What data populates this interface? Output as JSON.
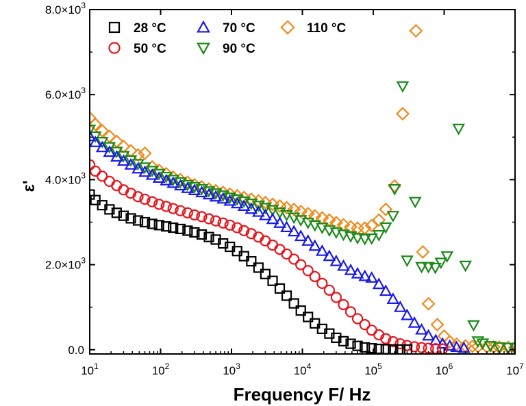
{
  "chart_data": {
    "type": "scatter",
    "xscale": "log",
    "xlabel": "Frequency F/ Hz",
    "ylabel": "ε'",
    "xlim": [
      10,
      10000000
    ],
    "ylim": [
      -100,
      8000
    ],
    "x_ticks": [
      {
        "value": 10,
        "base": "10",
        "exp": "1"
      },
      {
        "value": 100,
        "base": "10",
        "exp": "2"
      },
      {
        "value": 1000,
        "base": "10",
        "exp": "3"
      },
      {
        "value": 10000,
        "base": "10",
        "exp": "4"
      },
      {
        "value": 100000,
        "base": "10",
        "exp": "5"
      },
      {
        "value": 1000000,
        "base": "10",
        "exp": "6"
      },
      {
        "value": 10000000,
        "base": "10",
        "exp": "7"
      }
    ],
    "y_ticks": [
      {
        "value": 0,
        "text": "0.0"
      },
      {
        "value": 2000,
        "text": "2.0×10",
        "exp": "3"
      },
      {
        "value": 4000,
        "text": "4.0×10",
        "exp": "3"
      },
      {
        "value": 6000,
        "text": "6.0×10",
        "exp": "3"
      },
      {
        "value": 8000,
        "text": "8.0×10",
        "exp": "3"
      }
    ],
    "series": [
      {
        "name": "28 °C",
        "marker": "square",
        "color": "#000000",
        "points": [
          [
            10,
            3650
          ],
          [
            12,
            3520
          ],
          [
            15,
            3400
          ],
          [
            19,
            3300
          ],
          [
            24,
            3220
          ],
          [
            30,
            3150
          ],
          [
            38,
            3090
          ],
          [
            48,
            3040
          ],
          [
            60,
            3000
          ],
          [
            76,
            2960
          ],
          [
            95,
            2930
          ],
          [
            120,
            2900
          ],
          [
            150,
            2870
          ],
          [
            190,
            2840
          ],
          [
            240,
            2800
          ],
          [
            300,
            2760
          ],
          [
            380,
            2710
          ],
          [
            480,
            2650
          ],
          [
            600,
            2590
          ],
          [
            760,
            2500
          ],
          [
            950,
            2420
          ],
          [
            1200,
            2320
          ],
          [
            1500,
            2200
          ],
          [
            1900,
            2080
          ],
          [
            2400,
            1930
          ],
          [
            3000,
            1780
          ],
          [
            3800,
            1620
          ],
          [
            4800,
            1440
          ],
          [
            6000,
            1270
          ],
          [
            7600,
            1090
          ],
          [
            9500,
            920
          ],
          [
            12000,
            770
          ],
          [
            15000,
            620
          ],
          [
            19000,
            490
          ],
          [
            24000,
            380
          ],
          [
            30000,
            280
          ],
          [
            38000,
            200
          ],
          [
            48000,
            140
          ],
          [
            60000,
            90
          ],
          [
            76000,
            55
          ],
          [
            95000,
            35
          ],
          [
            120000,
            20
          ],
          [
            150000,
            12
          ],
          [
            190000,
            8
          ],
          [
            240000,
            5
          ],
          [
            300000,
            4
          ]
        ]
      },
      {
        "name": "50 °C",
        "marker": "circle",
        "color": "#e8141b",
        "points": [
          [
            10,
            4350
          ],
          [
            12,
            4200
          ],
          [
            15,
            4080
          ],
          [
            19,
            3960
          ],
          [
            24,
            3860
          ],
          [
            30,
            3760
          ],
          [
            38,
            3680
          ],
          [
            48,
            3600
          ],
          [
            60,
            3540
          ],
          [
            76,
            3480
          ],
          [
            95,
            3420
          ],
          [
            120,
            3370
          ],
          [
            150,
            3320
          ],
          [
            190,
            3270
          ],
          [
            240,
            3220
          ],
          [
            300,
            3170
          ],
          [
            380,
            3130
          ],
          [
            480,
            3080
          ],
          [
            600,
            3030
          ],
          [
            760,
            2980
          ],
          [
            950,
            2930
          ],
          [
            1200,
            2870
          ],
          [
            1500,
            2800
          ],
          [
            1900,
            2730
          ],
          [
            2400,
            2650
          ],
          [
            3000,
            2560
          ],
          [
            3800,
            2460
          ],
          [
            4800,
            2360
          ],
          [
            6000,
            2250
          ],
          [
            7600,
            2130
          ],
          [
            9500,
            2000
          ],
          [
            12000,
            1860
          ],
          [
            15000,
            1720
          ],
          [
            19000,
            1560
          ],
          [
            24000,
            1400
          ],
          [
            30000,
            1230
          ],
          [
            38000,
            1060
          ],
          [
            48000,
            890
          ],
          [
            60000,
            730
          ],
          [
            76000,
            590
          ],
          [
            95000,
            460
          ],
          [
            120000,
            350
          ],
          [
            150000,
            260
          ],
          [
            190000,
            190
          ],
          [
            240000,
            140
          ],
          [
            300000,
            100
          ],
          [
            380000,
            70
          ],
          [
            480000,
            50
          ],
          [
            600000,
            35
          ],
          [
            760000,
            25
          ],
          [
            950000,
            18
          ]
        ]
      },
      {
        "name": "70 °C",
        "marker": "triangle-up",
        "color": "#1a1ae6",
        "points": [
          [
            10,
            5020
          ],
          [
            12,
            4880
          ],
          [
            15,
            4760
          ],
          [
            19,
            4650
          ],
          [
            24,
            4540
          ],
          [
            30,
            4440
          ],
          [
            38,
            4350
          ],
          [
            48,
            4260
          ],
          [
            60,
            4180
          ],
          [
            76,
            4110
          ],
          [
            95,
            4040
          ],
          [
            120,
            3980
          ],
          [
            150,
            3920
          ],
          [
            190,
            3860
          ],
          [
            240,
            3800
          ],
          [
            300,
            3750
          ],
          [
            380,
            3700
          ],
          [
            480,
            3650
          ],
          [
            600,
            3600
          ],
          [
            760,
            3550
          ],
          [
            950,
            3500
          ],
          [
            1200,
            3440
          ],
          [
            1500,
            3380
          ],
          [
            1900,
            3310
          ],
          [
            2400,
            3240
          ],
          [
            3000,
            3160
          ],
          [
            3800,
            3070
          ],
          [
            4800,
            2980
          ],
          [
            6000,
            2880
          ],
          [
            7600,
            2780
          ],
          [
            9500,
            2670
          ],
          [
            12000,
            2560
          ],
          [
            15000,
            2440
          ],
          [
            19000,
            2320
          ],
          [
            24000,
            2200
          ],
          [
            30000,
            2080
          ],
          [
            38000,
            1970
          ],
          [
            48000,
            1870
          ],
          [
            60000,
            1790
          ],
          [
            76000,
            1730
          ],
          [
            95000,
            1690
          ],
          [
            120000,
            1540
          ],
          [
            150000,
            1380
          ],
          [
            190000,
            1190
          ],
          [
            240000,
            1000
          ],
          [
            300000,
            810
          ],
          [
            380000,
            630
          ],
          [
            480000,
            470
          ],
          [
            600000,
            330
          ],
          [
            760000,
            220
          ],
          [
            950000,
            140
          ],
          [
            1200000,
            90
          ],
          [
            1500000,
            60
          ],
          [
            1900000,
            40
          ]
        ]
      },
      {
        "name": "90 °C",
        "marker": "triangle-down",
        "color": "#1a8a1a",
        "points": [
          [
            10,
            5180
          ],
          [
            12,
            5020
          ],
          [
            15,
            4890
          ],
          [
            19,
            4770
          ],
          [
            24,
            4660
          ],
          [
            30,
            4560
          ],
          [
            38,
            4460
          ],
          [
            48,
            4370
          ],
          [
            60,
            4290
          ],
          [
            76,
            4210
          ],
          [
            95,
            4140
          ],
          [
            120,
            4070
          ],
          [
            150,
            4000
          ],
          [
            190,
            3940
          ],
          [
            240,
            3880
          ],
          [
            300,
            3830
          ],
          [
            380,
            3780
          ],
          [
            480,
            3730
          ],
          [
            600,
            3680
          ],
          [
            760,
            3630
          ],
          [
            950,
            3580
          ],
          [
            1200,
            3540
          ],
          [
            1500,
            3490
          ],
          [
            1900,
            3440
          ],
          [
            2400,
            3390
          ],
          [
            3000,
            3340
          ],
          [
            3800,
            3290
          ],
          [
            4800,
            3230
          ],
          [
            6000,
            3170
          ],
          [
            7600,
            3110
          ],
          [
            9500,
            3050
          ],
          [
            12000,
            2990
          ],
          [
            15000,
            2930
          ],
          [
            19000,
            2870
          ],
          [
            24000,
            2810
          ],
          [
            30000,
            2760
          ],
          [
            38000,
            2710
          ],
          [
            48000,
            2670
          ],
          [
            60000,
            2630
          ],
          [
            76000,
            2610
          ],
          [
            95000,
            2620
          ],
          [
            120000,
            2700
          ],
          [
            150000,
            2880
          ],
          [
            190000,
            3150
          ],
          [
            200000,
            3780
          ],
          [
            260000,
            6200
          ],
          [
            300000,
            2100
          ],
          [
            390000,
            3480
          ],
          [
            480000,
            1950
          ],
          [
            600000,
            1950
          ],
          [
            750000,
            1930
          ],
          [
            900000,
            2050
          ],
          [
            1100000,
            2200
          ],
          [
            1600000,
            5200
          ],
          [
            2000000,
            1980
          ],
          [
            2600000,
            580
          ],
          [
            3000000,
            200
          ],
          [
            3500000,
            150
          ],
          [
            4500000,
            90
          ],
          [
            6000000,
            60
          ],
          [
            8000000,
            50
          ],
          [
            10000000,
            45
          ]
        ]
      },
      {
        "name": "110 °C",
        "marker": "diamond",
        "color": "#f08a1c",
        "points": [
          [
            10,
            5450
          ],
          [
            12,
            5300
          ],
          [
            15,
            5150
          ],
          [
            19,
            5020
          ],
          [
            24,
            4900
          ],
          [
            30,
            4780
          ],
          [
            38,
            4680
          ],
          [
            48,
            4580
          ],
          [
            60,
            4620
          ],
          [
            76,
            4300
          ],
          [
            95,
            4220
          ],
          [
            120,
            4140
          ],
          [
            150,
            4060
          ],
          [
            190,
            4000
          ],
          [
            240,
            3940
          ],
          [
            300,
            3880
          ],
          [
            380,
            3830
          ],
          [
            480,
            3780
          ],
          [
            600,
            3740
          ],
          [
            760,
            3700
          ],
          [
            950,
            3660
          ],
          [
            1200,
            3620
          ],
          [
            1500,
            3580
          ],
          [
            1900,
            3540
          ],
          [
            2400,
            3500
          ],
          [
            3000,
            3460
          ],
          [
            3800,
            3420
          ],
          [
            4800,
            3380
          ],
          [
            6000,
            3340
          ],
          [
            7600,
            3300
          ],
          [
            9500,
            3250
          ],
          [
            12000,
            3200
          ],
          [
            15000,
            3150
          ],
          [
            19000,
            3100
          ],
          [
            24000,
            3050
          ],
          [
            30000,
            2990
          ],
          [
            38000,
            2940
          ],
          [
            48000,
            2890
          ],
          [
            60000,
            2860
          ],
          [
            76000,
            2860
          ],
          [
            95000,
            2920
          ],
          [
            120000,
            3050
          ],
          [
            150000,
            3300
          ],
          [
            200000,
            3850
          ],
          [
            260000,
            5550
          ],
          [
            400000,
            7500
          ],
          [
            500000,
            2300
          ],
          [
            600000,
            1080
          ],
          [
            800000,
            590
          ],
          [
            1000000,
            320
          ],
          [
            1200000,
            190
          ],
          [
            1500000,
            130
          ],
          [
            2000000,
            90
          ],
          [
            2500000,
            80
          ],
          [
            3000000,
            75
          ],
          [
            4000000,
            70
          ],
          [
            5000000,
            65
          ],
          [
            6000000,
            60
          ],
          [
            8000000,
            55
          ],
          [
            10000000,
            50
          ]
        ]
      }
    ]
  }
}
